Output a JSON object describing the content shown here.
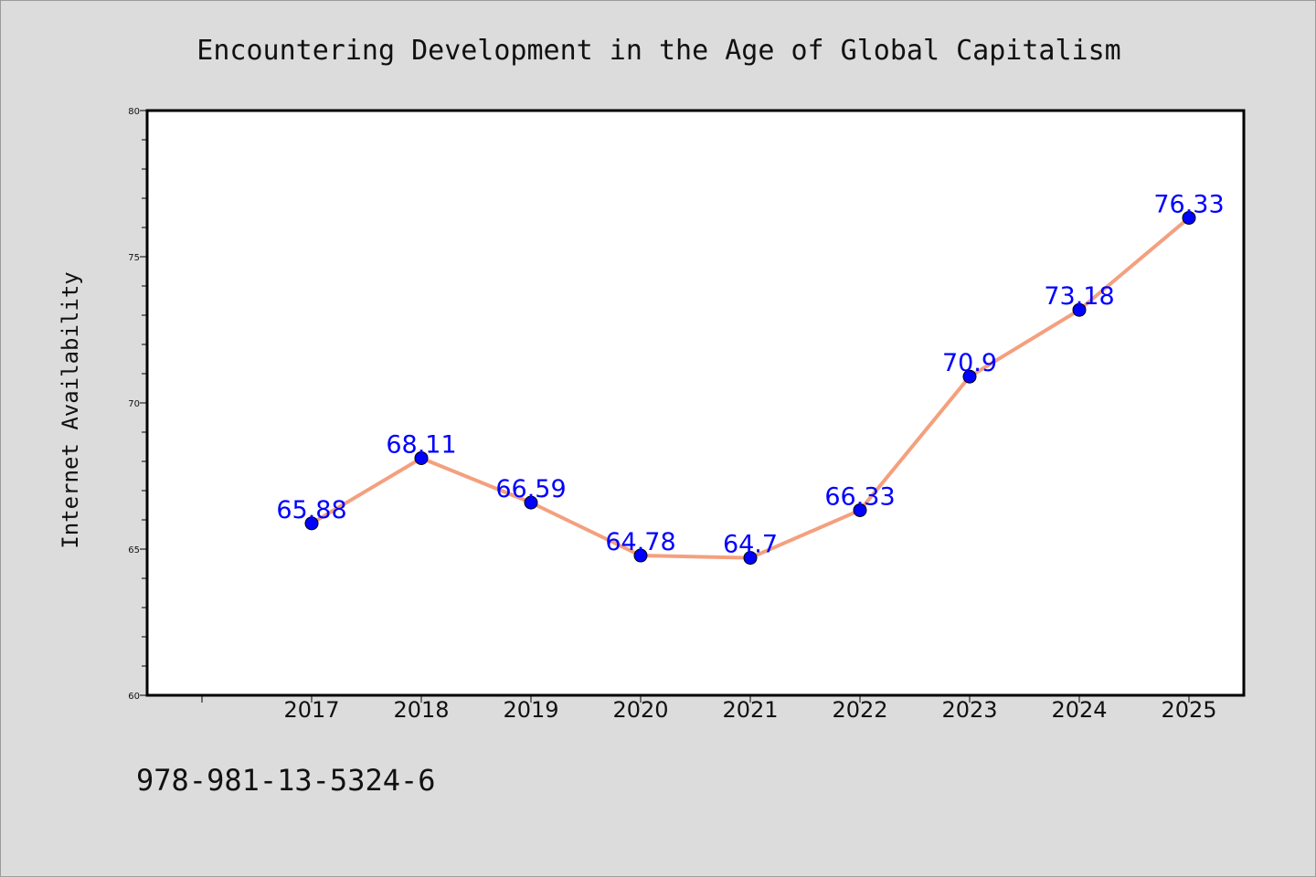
{
  "chart_data": {
    "type": "line",
    "title": "Encountering Development in the Age of Global Capitalism",
    "xlabel": "",
    "ylabel": "Internet Availability",
    "categories": [
      "2017",
      "2018",
      "2019",
      "2020",
      "2021",
      "2022",
      "2023",
      "2024",
      "2025"
    ],
    "series": [
      {
        "values": [
          65.88,
          68.11,
          66.59,
          64.78,
          64.7,
          66.33,
          70.9,
          73.18,
          76.33
        ],
        "line_color": "#f4a07e",
        "marker_color": "#0000ff"
      }
    ],
    "data_labels": [
      "65.88",
      "68.11",
      "66.59",
      "64.78",
      "64.7",
      "66.33",
      "70.9",
      "73.18",
      "76.33"
    ],
    "ylim": [
      60,
      80
    ],
    "yticks": [
      "60",
      "65",
      "70",
      "75",
      "80"
    ],
    "grid": false,
    "legend": "none"
  },
  "footer": {
    "isbn": "978-981-13-5324-6"
  },
  "colors": {
    "background": "#dcdcdc",
    "plot_background": "#ffffff",
    "line": "#f4a07e",
    "marker": "#0000ff",
    "data_label": "#0000ff"
  }
}
